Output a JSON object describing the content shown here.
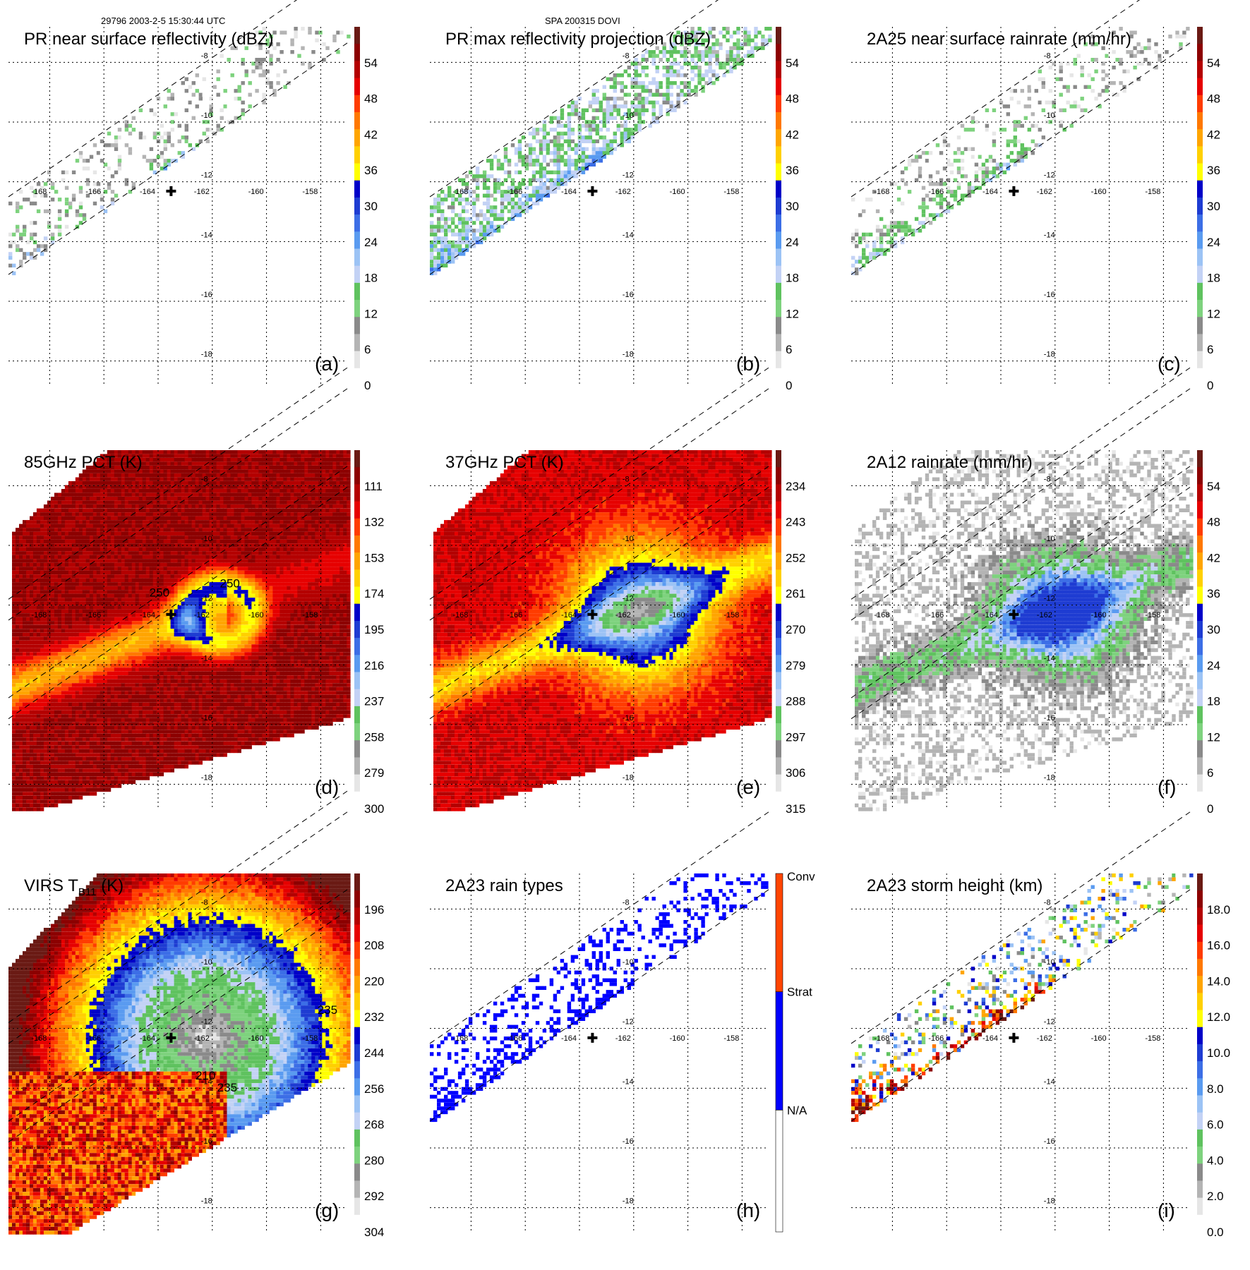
{
  "header": {
    "left": "29796 2003-2-5 15:30:44 UTC",
    "center": "SPA 200315 DOVI"
  },
  "palettes": {
    "reflectivity": [
      "#ffffff",
      "#e6e6e6",
      "#b4b4b4",
      "#8a8a8a",
      "#7ed27e",
      "#5fc25f",
      "#c3d2f5",
      "#9cc3f5",
      "#5a9bf0",
      "#3c6ee6",
      "#1e3cd2",
      "#0000c8",
      "#ffff00",
      "#ffd000",
      "#ffa500",
      "#ff7800",
      "#ff3c00",
      "#e60000",
      "#b40000",
      "#8c0000",
      "#6a1a14"
    ],
    "brightness_temp": [
      "#6a1a14",
      "#8c0000",
      "#b40000",
      "#e60000",
      "#ff3c00",
      "#ff7800",
      "#ffa500",
      "#ffd000",
      "#ffff00",
      "#0000c8",
      "#1e3cd2",
      "#3c6ee6",
      "#5a9bf0",
      "#9cc3f5",
      "#c3d2f5",
      "#5fc25f",
      "#7ed27e",
      "#8a8a8a",
      "#b4b4b4",
      "#e6e6e6",
      "#ffffff"
    ],
    "rain_type": {
      "conv": "#ff4500",
      "strat": "#0000ff",
      "na": "#ffffff"
    },
    "grid": "#000000"
  },
  "chart_data": [
    {
      "id": "a",
      "type": "heatmap",
      "title": "PR near surface reflectivity (dBZ)",
      "panel_label": "(a)",
      "lon_labels": [
        "-168",
        "-166",
        "-164",
        "-162",
        "-160",
        "-158"
      ],
      "lat_labels": [
        "-8",
        "-10",
        "-12",
        "-14",
        "-16",
        "-18"
      ],
      "lon_range": [
        -169,
        -156.5
      ],
      "lat_range": [
        -7,
        -19
      ],
      "colorbar": {
        "ticks": [
          "0",
          "6",
          "12",
          "18",
          "24",
          "30",
          "36",
          "42",
          "48",
          "54"
        ],
        "vmin": 0,
        "vmax": 60,
        "palette": "reflectivity"
      },
      "field": "pr_swath",
      "storm_center": {
        "lon": -163,
        "lat": -12.5
      }
    },
    {
      "id": "b",
      "type": "heatmap",
      "title": "PR max reflectivity projection (dBZ)",
      "panel_label": "(b)",
      "lon_labels": [
        "-168",
        "-166",
        "-164",
        "-162",
        "-160",
        "-158"
      ],
      "lat_labels": [
        "-8",
        "-10",
        "-12",
        "-14",
        "-16",
        "-18"
      ],
      "lon_range": [
        -169,
        -156.5
      ],
      "lat_range": [
        -7,
        -19
      ],
      "colorbar": {
        "ticks": [
          "0",
          "6",
          "12",
          "18",
          "24",
          "30",
          "36",
          "42",
          "48",
          "54"
        ],
        "vmin": 0,
        "vmax": 60,
        "palette": "reflectivity"
      },
      "field": "pr_swath_max",
      "storm_center": {
        "lon": -163,
        "lat": -12.5
      }
    },
    {
      "id": "c",
      "type": "heatmap",
      "title": "2A25 near surface rainrate (mm/hr)",
      "panel_label": "(c)",
      "lon_labels": [
        "-168",
        "-166",
        "-164",
        "-162",
        "-160",
        "-158"
      ],
      "lat_labels": [
        "-8",
        "-10",
        "-12",
        "-14",
        "-16",
        "-18"
      ],
      "lon_range": [
        -169,
        -156.5
      ],
      "lat_range": [
        -7,
        -19
      ],
      "colorbar": {
        "ticks": [
          "0",
          "6",
          "12",
          "18",
          "24",
          "30",
          "36",
          "42",
          "48",
          "54"
        ],
        "vmin": 0,
        "vmax": 60,
        "palette": "reflectivity"
      },
      "field": "pr_rain",
      "storm_center": {
        "lon": -163,
        "lat": -12.5
      }
    },
    {
      "id": "d",
      "type": "heatmap",
      "title": "85GHz PCT (K)",
      "panel_label": "(d)",
      "lon_labels": [
        "-168",
        "-166",
        "-164",
        "-162",
        "-160",
        "-158"
      ],
      "lat_labels": [
        "-8",
        "-10",
        "-12",
        "-14",
        "-16",
        "-18"
      ],
      "lon_range": [
        -169,
        -156.5
      ],
      "lat_range": [
        -7,
        -19
      ],
      "colorbar": {
        "ticks": [
          "300",
          "279",
          "258",
          "237",
          "216",
          "195",
          "174",
          "153",
          "132",
          "111"
        ],
        "vmin": 90,
        "vmax": 300,
        "palette": "brightness_temp",
        "reversed": true
      },
      "contour_labels": [
        "250",
        "250"
      ],
      "field": "tmi_85",
      "storm_center": {
        "lon": -163,
        "lat": -12.5
      }
    },
    {
      "id": "e",
      "type": "heatmap",
      "title": "37GHz PCT (K)",
      "panel_label": "(e)",
      "lon_labels": [
        "-168",
        "-166",
        "-164",
        "-162",
        "-160",
        "-158"
      ],
      "lat_labels": [
        "-8",
        "-10",
        "-12",
        "-14",
        "-16",
        "-18"
      ],
      "lon_range": [
        -169,
        -156.5
      ],
      "lat_range": [
        -7,
        -19
      ],
      "colorbar": {
        "ticks": [
          "315",
          "306",
          "297",
          "288",
          "279",
          "270",
          "261",
          "252",
          "243",
          "234"
        ],
        "vmin": 225,
        "vmax": 315,
        "palette": "brightness_temp",
        "reversed": true
      },
      "field": "tmi_37",
      "storm_center": {
        "lon": -163,
        "lat": -12.5
      }
    },
    {
      "id": "f",
      "type": "heatmap",
      "title": "2A12 rainrate (mm/hr)",
      "panel_label": "(f)",
      "lon_labels": [
        "-168",
        "-166",
        "-164",
        "-162",
        "-160",
        "-158"
      ],
      "lat_labels": [
        "-8",
        "-10",
        "-12",
        "-14",
        "-16",
        "-18"
      ],
      "lon_range": [
        -169,
        -156.5
      ],
      "lat_range": [
        -7,
        -19
      ],
      "colorbar": {
        "ticks": [
          "0",
          "6",
          "12",
          "18",
          "24",
          "30",
          "36",
          "42",
          "48",
          "54"
        ],
        "vmin": 0,
        "vmax": 60,
        "palette": "reflectivity"
      },
      "field": "tmi_rain",
      "storm_center": {
        "lon": -163,
        "lat": -12.5
      }
    },
    {
      "id": "g",
      "type": "heatmap",
      "title": "VIRS T",
      "title_sub": "B11",
      "title_suffix": " (K)",
      "panel_label": "(g)",
      "lon_labels": [
        "-168",
        "-166",
        "-164",
        "-162",
        "-160",
        "-158"
      ],
      "lat_labels": [
        "-8",
        "-10",
        "-12",
        "-14",
        "-16",
        "-18"
      ],
      "lon_range": [
        -169,
        -156.5
      ],
      "lat_range": [
        -7,
        -19
      ],
      "colorbar": {
        "ticks": [
          "304",
          "292",
          "280",
          "268",
          "256",
          "244",
          "232",
          "220",
          "208",
          "196"
        ],
        "vmin": 184,
        "vmax": 304,
        "palette": "brightness_temp",
        "reversed": true
      },
      "contour_labels": [
        "210",
        "235",
        "235"
      ],
      "field": "virs",
      "storm_center": {
        "lon": -163,
        "lat": -12.5
      }
    },
    {
      "id": "h",
      "type": "heatmap",
      "title": "2A23 rain types",
      "panel_label": "(h)",
      "lon_labels": [
        "-168",
        "-166",
        "-164",
        "-162",
        "-160",
        "-158"
      ],
      "lat_labels": [
        "-8",
        "-10",
        "-12",
        "-14",
        "-16",
        "-18"
      ],
      "lon_range": [
        -169,
        -156.5
      ],
      "lat_range": [
        -7,
        -19
      ],
      "colorbar": {
        "categories": [
          "N/A",
          "Strat",
          "Conv"
        ]
      },
      "field": "rain_type",
      "storm_center": {
        "lon": -163,
        "lat": -12.5
      }
    },
    {
      "id": "i",
      "type": "heatmap",
      "title": "2A23 storm height (km)",
      "panel_label": "(i)",
      "lon_labels": [
        "-168",
        "-166",
        "-164",
        "-162",
        "-160",
        "-158"
      ],
      "lat_labels": [
        "-8",
        "-10",
        "-12",
        "-14",
        "-16",
        "-18"
      ],
      "lon_range": [
        -169,
        -156.5
      ],
      "lat_range": [
        -7,
        -19
      ],
      "colorbar": {
        "ticks": [
          "0.0",
          "2.0",
          "4.0",
          "6.0",
          "8.0",
          "10.0",
          "12.0",
          "14.0",
          "16.0",
          "18.0"
        ],
        "vmin": 0,
        "vmax": 20,
        "palette": "reflectivity"
      },
      "field": "storm_height",
      "storm_center": {
        "lon": -163,
        "lat": -12.5
      }
    }
  ]
}
